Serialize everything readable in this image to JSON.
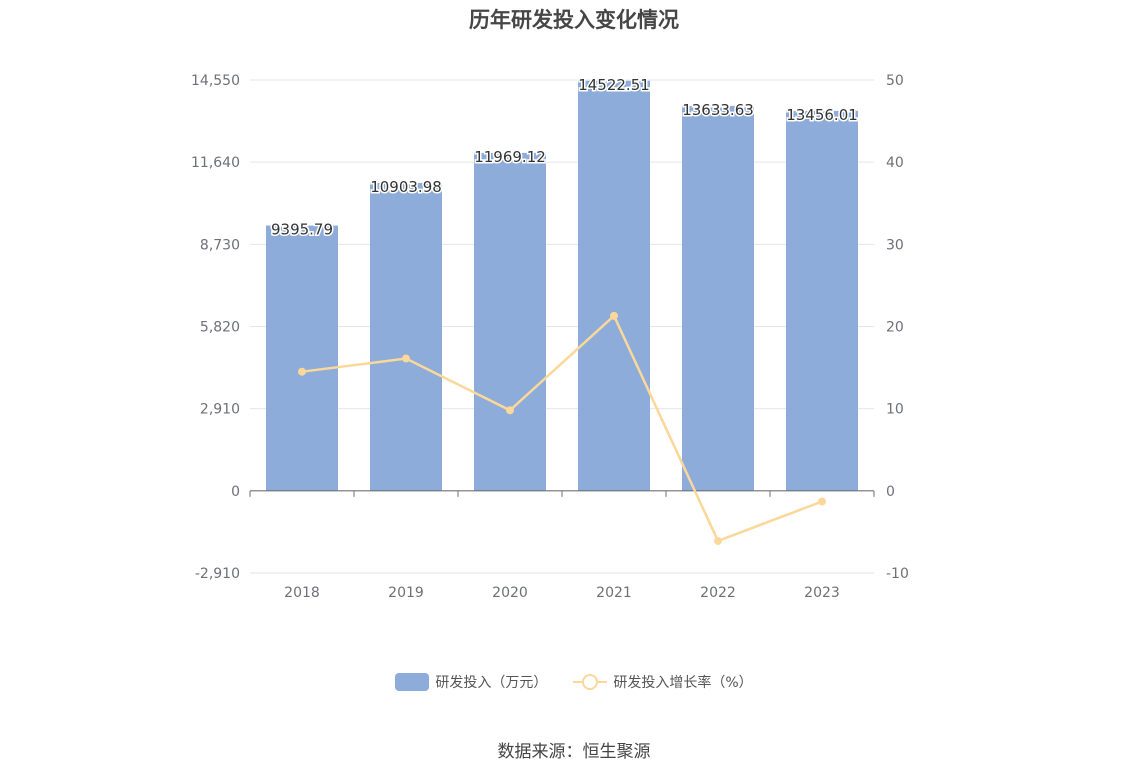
{
  "title": "历年研发投入变化情况",
  "source": "数据来源：恒生聚源",
  "colors": {
    "bar": "#8eacd9",
    "line": "#fbd79a",
    "grid": "#e3e6ef",
    "axis": "#6e7079"
  },
  "chart_data": {
    "type": "bar+line",
    "categories": [
      "2018",
      "2019",
      "2020",
      "2021",
      "2022",
      "2023"
    ],
    "series": [
      {
        "name": "研发投入（万元）",
        "type": "bar",
        "axis": "left",
        "values": [
          9395.79,
          10903.98,
          11969.12,
          14522.51,
          13633.63,
          13456.01
        ],
        "labels": [
          "9395.79",
          "10903.98",
          "11969.12",
          "14522.51",
          "13633.63",
          "13456.01"
        ]
      },
      {
        "name": "研发投入增长率（%）",
        "type": "line",
        "axis": "right",
        "values": [
          14.5,
          16.1,
          9.8,
          21.3,
          -6.1,
          -1.3
        ]
      }
    ],
    "left_axis": {
      "ticks": [
        "14,550",
        "11,640",
        "8,730",
        "5,820",
        "2,910",
        "0",
        "-2,910"
      ],
      "tick_values": [
        14550,
        11640,
        8730,
        5820,
        2910,
        0,
        -2910
      ],
      "range": [
        -2910,
        14550
      ]
    },
    "right_axis": {
      "ticks": [
        "50",
        "40",
        "30",
        "20",
        "10",
        "0",
        "-10"
      ],
      "tick_values": [
        50,
        40,
        30,
        20,
        10,
        0,
        -10
      ],
      "range": [
        -10,
        50
      ]
    },
    "legend_position": "bottom",
    "grid": true
  }
}
